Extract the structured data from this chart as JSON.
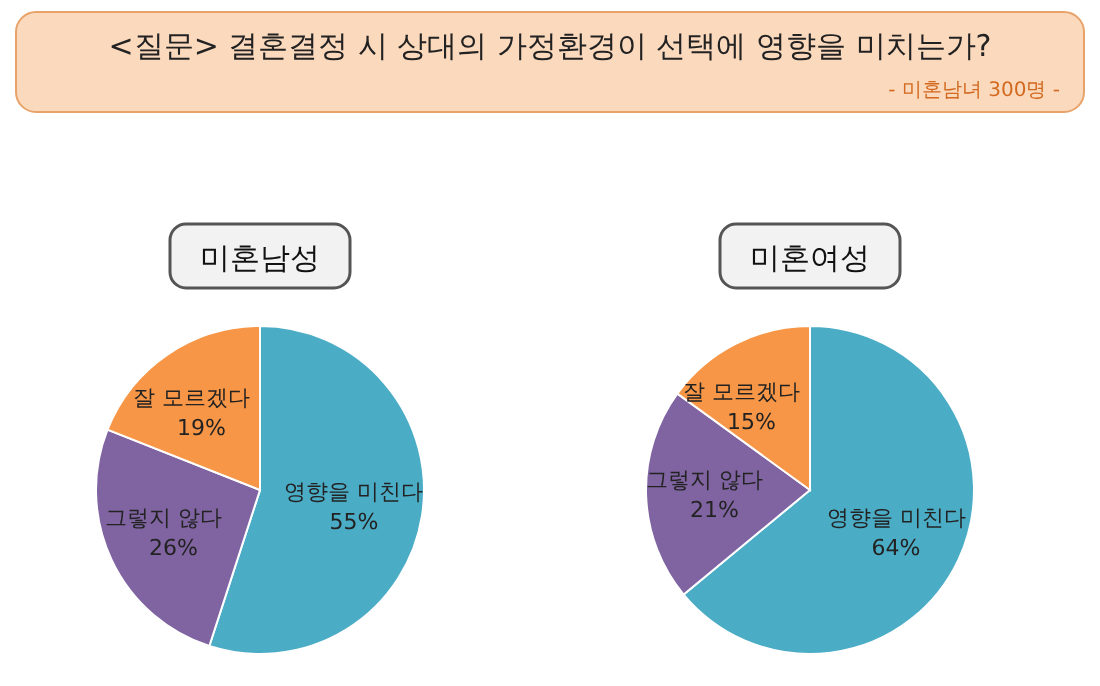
{
  "chart_data": [
    {
      "type": "pie",
      "title": "미혼남성",
      "annotations": [
        "<질문> 결혼결정 시 상대의 가정환경이 선택에 영향을 미치는가?",
        "- 미혼남녀 300명 -"
      ],
      "categories": [
        "영향을 미친다",
        "그렇지 않다",
        "잘 모르겠다"
      ],
      "values": [
        55,
        26,
        19
      ],
      "colors": [
        "#4bacc6",
        "#8064a2",
        "#f79646"
      ],
      "value_labels": [
        "55%",
        "26%",
        "19%"
      ]
    },
    {
      "type": "pie",
      "title": "미혼여성",
      "categories": [
        "영향을 미친다",
        "그렇지 않다",
        "잘 모르겠다"
      ],
      "values": [
        64,
        21,
        15
      ],
      "colors": [
        "#4bacc6",
        "#8064a2",
        "#f79646"
      ],
      "value_labels": [
        "64%",
        "21%",
        "15%"
      ]
    }
  ]
}
